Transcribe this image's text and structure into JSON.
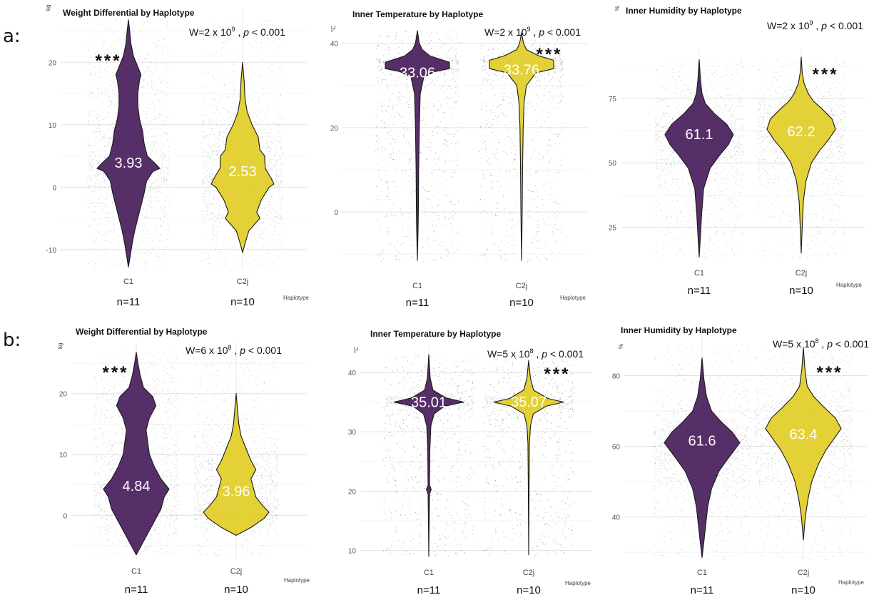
{
  "row_labels": [
    "a:",
    "b:"
  ],
  "colors": {
    "C1": "#4a1f5c",
    "C2j": "#e1cd28",
    "jitter": "#000000",
    "grid": "#e6e6e6"
  },
  "chart_data": [
    {
      "type": "violin",
      "row": "a:",
      "title": "Weight Differential by Haplotype",
      "ylabel": "kg",
      "xlabel": "Haplotype",
      "ylim": [
        -13,
        27
      ],
      "yticks": [
        -10,
        0,
        10,
        20
      ],
      "categories": [
        "C1",
        "C2j"
      ],
      "n_labels": [
        "n=11",
        "n=10"
      ],
      "stat": {
        "prefix": "W=2 x 10",
        "exp": "9",
        "sep": " , ",
        "p": "p",
        "rest": " < 0.001"
      },
      "signif": {
        "text": "***",
        "category": "C1"
      },
      "series": [
        {
          "name": "C1",
          "center": 3.93,
          "center_label": "3.93",
          "profile": [
            [
              -12.8,
              0
            ],
            [
              -11,
              0.06
            ],
            [
              -9,
              0.12
            ],
            [
              -7,
              0.2
            ],
            [
              -5,
              0.3
            ],
            [
              -3,
              0.4
            ],
            [
              -1,
              0.5
            ],
            [
              1,
              0.58
            ],
            [
              2.5,
              0.78
            ],
            [
              3,
              1
            ],
            [
              3.8,
              0.85
            ],
            [
              5,
              0.6
            ],
            [
              7,
              0.5
            ],
            [
              9,
              0.45
            ],
            [
              11,
              0.35
            ],
            [
              13,
              0.3
            ],
            [
              15,
              0.3
            ],
            [
              17,
              0.35
            ],
            [
              18,
              0.4
            ],
            [
              19,
              0.32
            ],
            [
              21,
              0.16
            ],
            [
              23,
              0.08
            ],
            [
              25,
              0.04
            ],
            [
              26.8,
              0
            ]
          ]
        },
        {
          "name": "C2j",
          "center": 2.53,
          "center_label": "2.53",
          "profile": [
            [
              -10.5,
              0
            ],
            [
              -9,
              0.08
            ],
            [
              -7,
              0.2
            ],
            [
              -5,
              0.55
            ],
            [
              -4,
              0.45
            ],
            [
              -2,
              0.6
            ],
            [
              0,
              0.85
            ],
            [
              0.5,
              1
            ],
            [
              1.5,
              0.9
            ],
            [
              3,
              0.72
            ],
            [
              5,
              0.7
            ],
            [
              6,
              0.55
            ],
            [
              8,
              0.5
            ],
            [
              10,
              0.3
            ],
            [
              12,
              0.15
            ],
            [
              14,
              0.08
            ],
            [
              17,
              0.05
            ],
            [
              20,
              0
            ]
          ]
        }
      ]
    },
    {
      "type": "violin",
      "row": "a:",
      "title": "Inner Temperature by Haplotype",
      "ylabel": "°C",
      "xlabel": "Haplotype",
      "ylim": [
        -12,
        43
      ],
      "yticks": [
        0,
        20,
        40
      ],
      "categories": [
        "C1",
        "C2j"
      ],
      "n_labels": [
        "n=11",
        "n=10"
      ],
      "stat": {
        "prefix": "W=2 x 10",
        "exp": "9",
        "sep": " , ",
        "p": "p",
        "rest": " < 0.001"
      },
      "signif": {
        "text": "***",
        "category": "C2j"
      },
      "series": [
        {
          "name": "C1",
          "center": 33.06,
          "center_label": "33.06",
          "profile": [
            [
              -11.5,
              0
            ],
            [
              -5,
              0.02
            ],
            [
              0,
              0.03
            ],
            [
              10,
              0.04
            ],
            [
              20,
              0.06
            ],
            [
              28,
              0.09
            ],
            [
              32,
              0.2
            ],
            [
              33.3,
              0.55
            ],
            [
              34,
              1
            ],
            [
              35.5,
              1
            ],
            [
              37,
              0.4
            ],
            [
              38.5,
              0.15
            ],
            [
              40,
              0.06
            ],
            [
              43,
              0
            ]
          ]
        },
        {
          "name": "C2j",
          "center": 33.76,
          "center_label": "33.76",
          "profile": [
            [
              -11.5,
              0
            ],
            [
              0,
              0.02
            ],
            [
              10,
              0.03
            ],
            [
              20,
              0.05
            ],
            [
              26,
              0.08
            ],
            [
              30,
              0.15
            ],
            [
              33,
              0.45
            ],
            [
              34,
              1
            ],
            [
              36,
              1
            ],
            [
              37,
              0.55
            ],
            [
              38.5,
              0.15
            ],
            [
              40,
              0.06
            ],
            [
              42.5,
              0
            ]
          ]
        }
      ]
    },
    {
      "type": "violin",
      "row": "a:",
      "title": "Inner Humidity by Haplotype",
      "ylabel": "%",
      "xlabel": "Haplotype",
      "ylim": [
        13,
        91
      ],
      "yticks": [
        25,
        50,
        75
      ],
      "categories": [
        "C1",
        "C2j"
      ],
      "n_labels": [
        "n=11",
        "n=10"
      ],
      "stat": {
        "prefix": "W=2 x 10",
        "exp": "9",
        "sep": " , ",
        "p": "p",
        "rest": " < 0.001"
      },
      "signif": {
        "text": "***",
        "category": "C2j"
      },
      "series": [
        {
          "name": "C1",
          "center": 61.1,
          "center_label": "61.1",
          "profile": [
            [
              13.5,
              0
            ],
            [
              20,
              0.03
            ],
            [
              30,
              0.07
            ],
            [
              40,
              0.13
            ],
            [
              48,
              0.32
            ],
            [
              53,
              0.6
            ],
            [
              57,
              0.85
            ],
            [
              61,
              1
            ],
            [
              65,
              0.8
            ],
            [
              69,
              0.45
            ],
            [
              73,
              0.18
            ],
            [
              77,
              0.08
            ],
            [
              82,
              0.04
            ],
            [
              90,
              0
            ]
          ]
        },
        {
          "name": "C2j",
          "center": 62.2,
          "center_label": "62.2",
          "profile": [
            [
              15,
              0
            ],
            [
              25,
              0.03
            ],
            [
              35,
              0.06
            ],
            [
              43,
              0.14
            ],
            [
              50,
              0.3
            ],
            [
              55,
              0.55
            ],
            [
              59,
              0.8
            ],
            [
              63,
              1
            ],
            [
              67,
              0.9
            ],
            [
              71,
              0.6
            ],
            [
              74,
              0.35
            ],
            [
              77,
              0.2
            ],
            [
              81,
              0.08
            ],
            [
              85,
              0.03
            ],
            [
              91,
              0
            ]
          ]
        }
      ]
    },
    {
      "type": "violin",
      "row": "b:",
      "title": "Weight Differential by Haplotype",
      "ylabel": "kg",
      "xlabel": "Haplotype",
      "ylim": [
        -7,
        27
      ],
      "yticks": [
        0,
        10,
        20
      ],
      "categories": [
        "C1",
        "C2j"
      ],
      "n_labels": [
        "n=11",
        "n=10"
      ],
      "stat": {
        "prefix": "W=6 x 10",
        "exp": "8",
        "sep": " , ",
        "p": "p",
        "rest": " < 0.001"
      },
      "signif": {
        "text": "***",
        "category": "C1"
      },
      "series": [
        {
          "name": "C1",
          "center": 4.84,
          "center_label": "4.84",
          "profile": [
            [
              -6.5,
              0
            ],
            [
              -5,
              0.15
            ],
            [
              -3,
              0.35
            ],
            [
              -1,
              0.55
            ],
            [
              1,
              0.75
            ],
            [
              3,
              0.85
            ],
            [
              4.3,
              1
            ],
            [
              6,
              0.75
            ],
            [
              8,
              0.55
            ],
            [
              10,
              0.4
            ],
            [
              12,
              0.35
            ],
            [
              14,
              0.3
            ],
            [
              16,
              0.4
            ],
            [
              18,
              0.6
            ],
            [
              19.5,
              0.5
            ],
            [
              21,
              0.22
            ],
            [
              23,
              0.12
            ],
            [
              25,
              0.05
            ],
            [
              26.8,
              0
            ]
          ]
        },
        {
          "name": "C2j",
          "center": 3.96,
          "center_label": "3.96",
          "profile": [
            [
              -3.3,
              0
            ],
            [
              -2,
              0.45
            ],
            [
              -0.5,
              0.85
            ],
            [
              0.5,
              1
            ],
            [
              1.5,
              0.82
            ],
            [
              3,
              0.6
            ],
            [
              5,
              0.5
            ],
            [
              6,
              0.45
            ],
            [
              7.5,
              0.6
            ],
            [
              9,
              0.45
            ],
            [
              11,
              0.3
            ],
            [
              13,
              0.15
            ],
            [
              15,
              0.08
            ],
            [
              17.5,
              0.04
            ],
            [
              20,
              0
            ]
          ]
        }
      ]
    },
    {
      "type": "violin",
      "row": "b:",
      "title": "Inner Temperature by Haplotype",
      "ylabel": "°C",
      "xlabel": "Haplotype",
      "ylim": [
        9,
        43
      ],
      "yticks": [
        10,
        20,
        30,
        40
      ],
      "categories": [
        "C1",
        "C2j"
      ],
      "n_labels": [
        "n=11",
        "n=10"
      ],
      "stat": {
        "prefix": "W=5 x 10",
        "exp": "8",
        "sep": " , ",
        "p": "p",
        "rest": " < 0.001"
      },
      "signif": {
        "text": "***",
        "category": "C2j"
      },
      "series": [
        {
          "name": "C1",
          "center": 35.01,
          "center_label": "35.01",
          "profile": [
            [
              9,
              0
            ],
            [
              15,
              0.01
            ],
            [
              19.5,
              0.02
            ],
            [
              20.3,
              0.07
            ],
            [
              21,
              0.02
            ],
            [
              27,
              0.03
            ],
            [
              31,
              0.06
            ],
            [
              33,
              0.15
            ],
            [
              34.3,
              0.45
            ],
            [
              35,
              1
            ],
            [
              35.7,
              0.5
            ],
            [
              37,
              0.12
            ],
            [
              39,
              0.04
            ],
            [
              43,
              0
            ]
          ]
        },
        {
          "name": "C2j",
          "center": 35.07,
          "center_label": "35.07",
          "profile": [
            [
              9.3,
              0
            ],
            [
              20,
              0.01
            ],
            [
              28,
              0.02
            ],
            [
              31,
              0.05
            ],
            [
              33,
              0.13
            ],
            [
              34.3,
              0.5
            ],
            [
              35,
              1
            ],
            [
              35.6,
              0.55
            ],
            [
              37,
              0.14
            ],
            [
              39,
              0.05
            ],
            [
              42,
              0
            ]
          ]
        }
      ]
    },
    {
      "type": "violin",
      "row": "b:",
      "title": "Inner Humidity by Haplotype",
      "ylabel": "%",
      "xlabel": "Haplotype",
      "ylim": [
        28,
        89
      ],
      "yticks": [
        40,
        60,
        80
      ],
      "categories": [
        "C1",
        "C2j"
      ],
      "n_labels": [
        "n=11",
        "n=10"
      ],
      "stat": {
        "prefix": "W=5 x 10",
        "exp": "8",
        "sep": " , ",
        "p": "p",
        "rest": " < 0.001"
      },
      "signif": {
        "text": "***",
        "category": "C2j"
      },
      "series": [
        {
          "name": "C1",
          "center": 61.6,
          "center_label": "61.6",
          "profile": [
            [
              28.5,
              0
            ],
            [
              33,
              0.05
            ],
            [
              38,
              0.1
            ],
            [
              43,
              0.15
            ],
            [
              48,
              0.25
            ],
            [
              53,
              0.45
            ],
            [
              57,
              0.72
            ],
            [
              61,
              1
            ],
            [
              64,
              0.8
            ],
            [
              67,
              0.5
            ],
            [
              70,
              0.25
            ],
            [
              74,
              0.12
            ],
            [
              79,
              0.05
            ],
            [
              85,
              0
            ]
          ]
        },
        {
          "name": "C2j",
          "center": 63.4,
          "center_label": "63.4",
          "profile": [
            [
              33.5,
              0
            ],
            [
              40,
              0.05
            ],
            [
              45,
              0.12
            ],
            [
              50,
              0.22
            ],
            [
              55,
              0.4
            ],
            [
              59,
              0.6
            ],
            [
              62,
              0.8
            ],
            [
              65,
              1
            ],
            [
              68,
              0.85
            ],
            [
              71,
              0.55
            ],
            [
              74,
              0.28
            ],
            [
              77,
              0.1
            ],
            [
              82,
              0.04
            ],
            [
              88,
              0
            ]
          ]
        }
      ]
    }
  ]
}
